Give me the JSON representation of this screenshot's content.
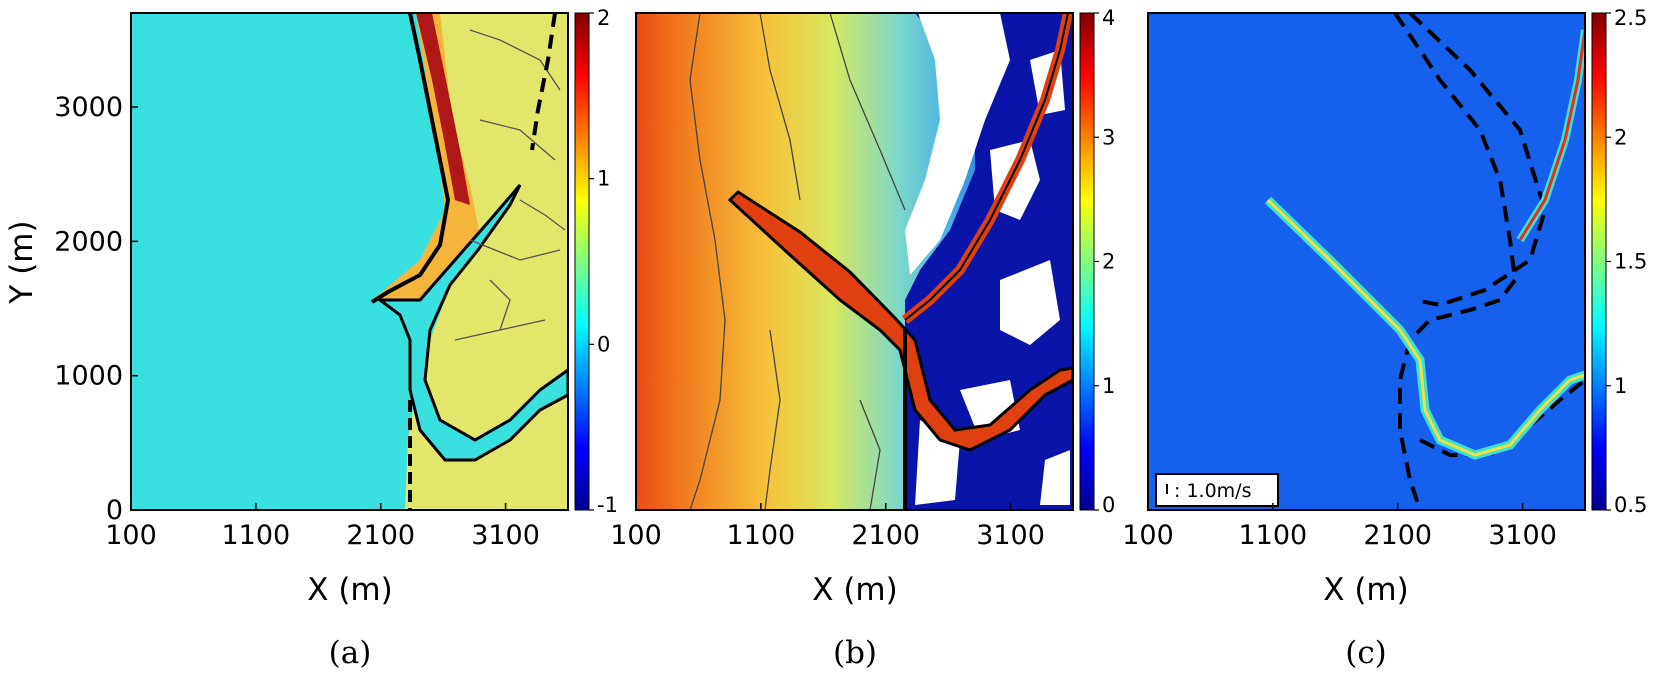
{
  "colors": {
    "jet_stops": [
      "#00008f",
      "#0000ff",
      "#0080ff",
      "#00ffff",
      "#80ff80",
      "#ffff00",
      "#ff8000",
      "#ff0000",
      "#800000"
    ],
    "background_a": "#38e0e0",
    "background_c": "#1660ee",
    "land_white": "#ffffff",
    "land_dark_blue": "#0a14a8",
    "contour": "#333333",
    "outline": "#000000"
  },
  "chart_data": [
    {
      "type": "heatmap",
      "panel_label": "(a)",
      "xlabel": "X (m)",
      "ylabel": "Y (m)",
      "xlim": [
        100,
        3600
      ],
      "ylim": [
        0,
        3700
      ],
      "xticks": [
        "100",
        "1100",
        "2100",
        "3100"
      ],
      "yticks": [
        "0",
        "1000",
        "2000",
        "3000"
      ],
      "colorbar": {
        "min": -1,
        "max": 2,
        "ticks": [
          "2",
          "1",
          "0",
          "-1"
        ]
      }
    },
    {
      "type": "heatmap",
      "panel_label": "(b)",
      "xlabel": "X (m)",
      "ylabel": "",
      "xlim": [
        100,
        3600
      ],
      "ylim": [
        0,
        3700
      ],
      "xticks": [
        "100",
        "1100",
        "2100",
        "3100"
      ],
      "yticks": [],
      "colorbar": {
        "min": 0,
        "max": 4,
        "ticks": [
          "4",
          "3",
          "2",
          "1",
          "0"
        ]
      }
    },
    {
      "type": "heatmap",
      "panel_label": "(c)",
      "xlabel": "X (m)",
      "ylabel": "",
      "xlim": [
        100,
        3600
      ],
      "ylim": [
        0,
        3700
      ],
      "xticks": [
        "100",
        "1100",
        "2100",
        "3100"
      ],
      "yticks": [],
      "colorbar": {
        "min": 0.5,
        "max": 2.5,
        "ticks": [
          "2.5",
          "2",
          "1.5",
          "1",
          "0.5"
        ]
      },
      "legend": {
        "text": ": 1.0m/s",
        "position": "bottom-left"
      }
    }
  ]
}
